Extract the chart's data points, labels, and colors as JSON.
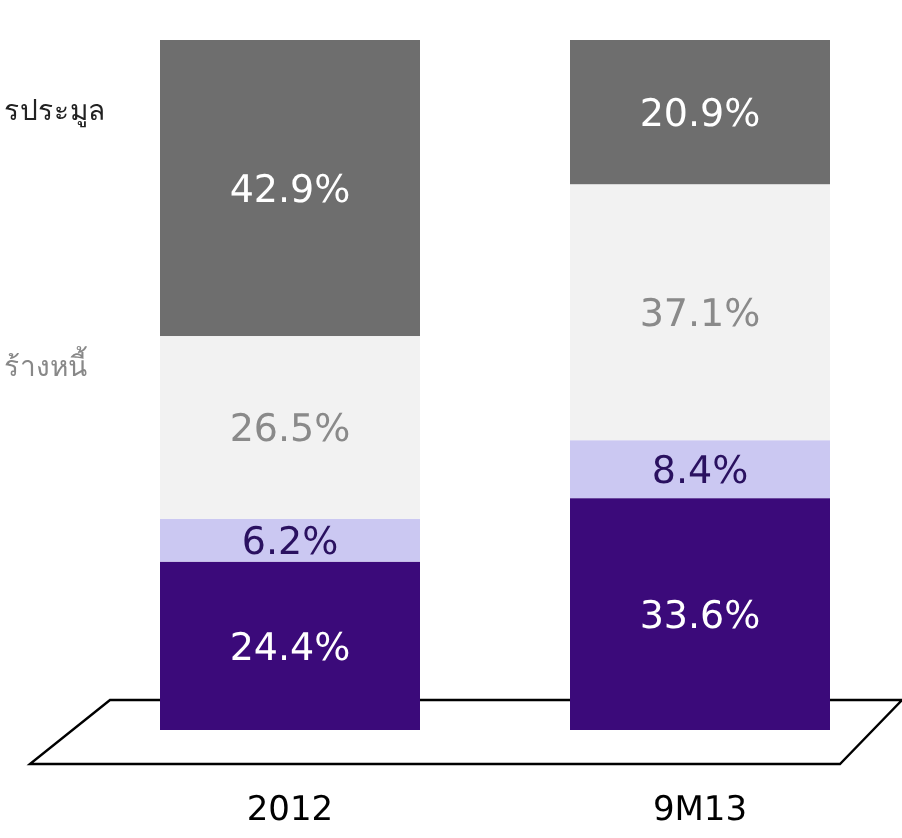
{
  "chart_data": {
    "type": "bar",
    "stacked": true,
    "categories": [
      "2012",
      "9M13"
    ],
    "annotations": [
      "รประมูล",
      "ร้างหนี้"
    ],
    "series": [
      {
        "color": "#3b0a7a",
        "values": [
          24.4,
          33.6
        ],
        "value_labels": [
          "24.4%",
          "33.6%"
        ]
      },
      {
        "color": "#cbc8f2",
        "values": [
          6.2,
          8.4
        ],
        "value_labels": [
          "6.2%",
          "8.4%"
        ]
      },
      {
        "color": "#f2f2f2",
        "values": [
          26.5,
          37.1
        ],
        "value_labels": [
          "26.5%",
          "37.1%"
        ]
      },
      {
        "color": "#6e6e6e",
        "values": [
          42.9,
          20.9
        ],
        "value_labels": [
          "42.9%",
          "20.9%"
        ]
      }
    ]
  }
}
